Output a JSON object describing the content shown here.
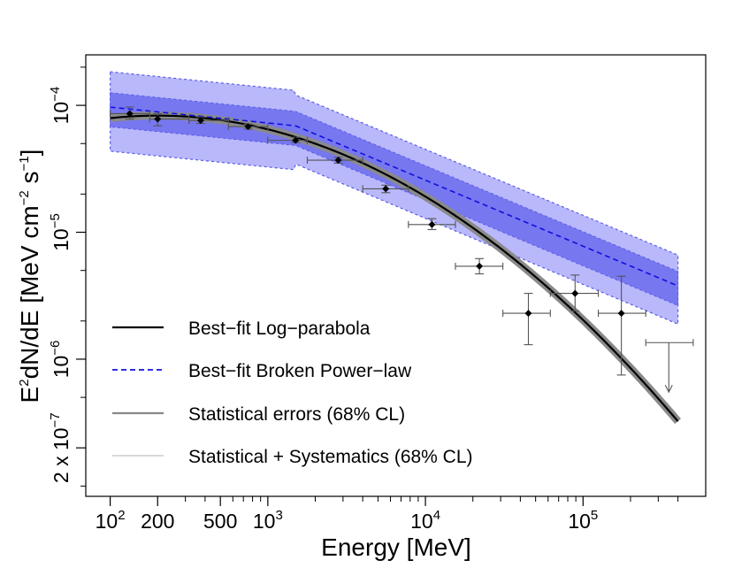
{
  "chart_data": {
    "type": "line",
    "title": "",
    "xlabel": "Energy [MeV]",
    "ylabel_parts": {
      "base": "E",
      "sup1": "2",
      "mid": "dN/dE [MeV cm",
      "sup2": "−2",
      "mid2": " s",
      "sup3": "−1",
      "end": "]"
    },
    "xscale": "log",
    "yscale": "log",
    "xlim": [
      70,
      600000
    ],
    "ylim": [
      8.3e-08,
      0.00025
    ],
    "x_ticks": [
      {
        "value": 100,
        "label": "10",
        "sup": "2"
      },
      {
        "value": 200,
        "label": "200",
        "sup": ""
      },
      {
        "value": 500,
        "label": "500",
        "sup": ""
      },
      {
        "value": 1000,
        "label": "10",
        "sup": "3"
      },
      {
        "value": 10000,
        "label": "10",
        "sup": "4"
      },
      {
        "value": 100000,
        "label": "10",
        "sup": "5"
      }
    ],
    "x_minor_ticks": [
      300,
      400,
      600,
      700,
      800,
      900,
      2000,
      3000,
      4000,
      5000,
      6000,
      7000,
      8000,
      9000,
      20000,
      30000,
      40000,
      50000,
      60000,
      70000,
      80000,
      90000,
      200000,
      300000,
      400000
    ],
    "y_ticks": [
      {
        "value": 0.0001,
        "label": "10",
        "sup": "−4"
      },
      {
        "value": 1e-05,
        "label": "10",
        "sup": "−5"
      },
      {
        "value": 1e-06,
        "label": "10",
        "sup": "−6"
      },
      {
        "value": 2e-07,
        "label": "2 x 10",
        "sup": "−7"
      }
    ],
    "y_minor_ticks": [
      0.0002,
      5e-05,
      2e-05,
      5e-06,
      2e-06,
      5e-07,
      1e-07
    ],
    "legend": {
      "placement": "bottom-left",
      "entries": [
        {
          "label": "Best−fit Log−parabola",
          "style": "solid-black"
        },
        {
          "label": "Best−fit Broken Power−law",
          "style": "dashed-blue"
        },
        {
          "label": "Statistical errors (68% CL)",
          "style": "grey-band"
        },
        {
          "label": "Statistical + Systematics (68% CL)",
          "style": "light-band"
        }
      ]
    },
    "colors": {
      "logparabola": "#000000",
      "logparabola_band": "#8a8a8a",
      "broken_powerlaw": "#1010e0",
      "stat_band": "#7777f0",
      "syst_band": "#b8b8fb",
      "band_edge": "#5a5ae8",
      "data_points": "#000000",
      "error_bars": "#555555"
    },
    "logparabola": {
      "E0": 200,
      "N0": 8.3e-05,
      "beta": 0.096,
      "emin": 100,
      "emax": 400000
    },
    "broken_powerlaw": {
      "Eb": 1500,
      "Nb": 6.9e-05,
      "index_below": 2.125,
      "index_above": 2.52,
      "emin": 100,
      "emax": 400000
    },
    "band_factors": {
      "stat_low": 0.7,
      "stat_high": 1.3,
      "syst_low_below_break": 0.45,
      "syst_high_below_break": 1.9,
      "syst_low_above_break": 0.5,
      "syst_high_above_break": 1.75
    },
    "points": [
      {
        "x": 133,
        "y": 8.6e-05,
        "xlo": 100,
        "xhi": 178,
        "ylo": 7.8e-05,
        "yhi": 9.7e-05
      },
      {
        "x": 200,
        "y": 7.8e-05,
        "xlo": 178,
        "xhi": 316,
        "ylo": 6.9e-05,
        "yhi": 8.6e-05
      },
      {
        "x": 375,
        "y": 7.6e-05,
        "xlo": 316,
        "xhi": 562,
        "ylo": 7.2e-05,
        "yhi": 8.1e-05
      },
      {
        "x": 750,
        "y": 6.8e-05,
        "xlo": 562,
        "xhi": 1000,
        "ylo": 6.5e-05,
        "yhi": 7.1e-05
      },
      {
        "x": 1500,
        "y": 5.3e-05,
        "xlo": 1000,
        "xhi": 1780,
        "ylo": 5.1e-05,
        "yhi": 5.6e-05
      },
      {
        "x": 2800,
        "y": 3.7e-05,
        "xlo": 1780,
        "xhi": 4000,
        "ylo": 3.5e-05,
        "yhi": 3.9e-05
      },
      {
        "x": 5600,
        "y": 2.2e-05,
        "xlo": 4000,
        "xhi": 7800,
        "ylo": 2.05e-05,
        "yhi": 2.35e-05
      },
      {
        "x": 11000,
        "y": 1.15e-05,
        "xlo": 7800,
        "xhi": 15500,
        "ylo": 1.05e-05,
        "yhi": 1.28e-05
      },
      {
        "x": 22000,
        "y": 5.4e-06,
        "xlo": 15500,
        "xhi": 31000,
        "ylo": 4.7e-06,
        "yhi": 6.2e-06
      },
      {
        "x": 45000,
        "y": 2.3e-06,
        "xlo": 31000,
        "xhi": 62000,
        "ylo": 1.3e-06,
        "yhi": 3.3e-06
      },
      {
        "x": 89000,
        "y": 3.3e-06,
        "xlo": 62000,
        "xhi": 125000,
        "ylo": 2.4e-06,
        "yhi": 4.6e-06
      },
      {
        "x": 175000,
        "y": 2.3e-06,
        "xlo": 125000,
        "xhi": 250000,
        "ylo": 7.5e-07,
        "yhi": 4.5e-06
      }
    ],
    "upper_limits": [
      {
        "x": 350000,
        "y": 1.35e-06,
        "xlo": 250000,
        "xhi": 500000,
        "arrow_to": 5.5e-07
      }
    ]
  }
}
